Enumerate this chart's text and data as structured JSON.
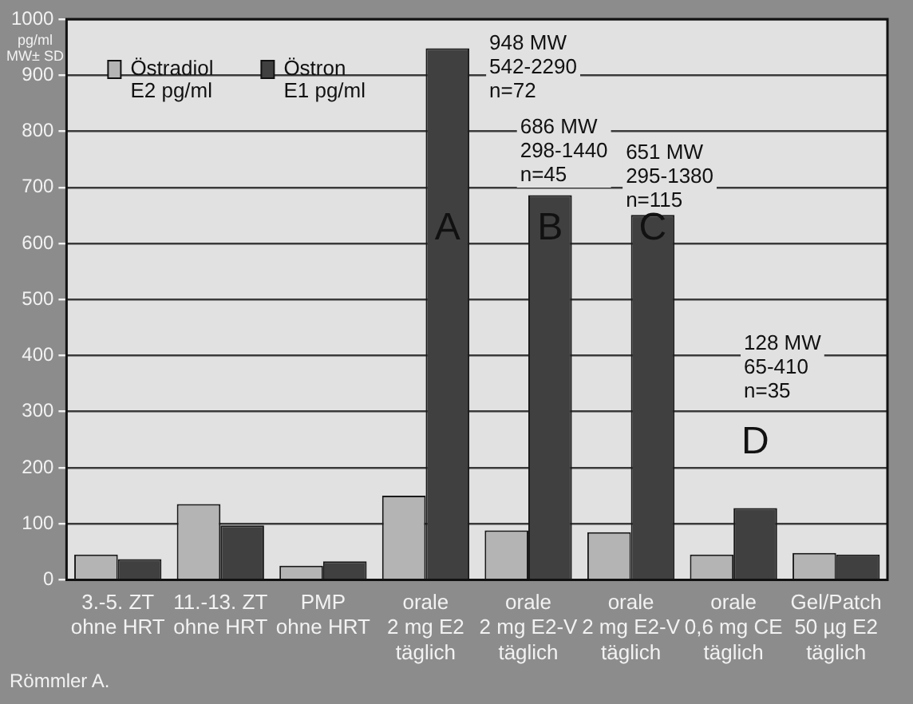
{
  "chart_data": {
    "type": "bar",
    "ylabel": "pg/ml\nMW± SD",
    "categories": [
      "3.-5. ZT\nohne HRT",
      "11.-13. ZT\nohne HRT",
      "PMP\nohne HRT",
      "orale\n2 mg E2\ntäglich",
      "orale\n2 mg E2-V\ntäglich",
      "orale\n2 mg E2-V\ntäglich",
      "orale\n0,6 mg CE\ntäglich",
      "Gel/Patch\n50 µg E2\ntäglich"
    ],
    "series": [
      {
        "name": "Östradiol\nE2 pg/ml",
        "color": "#b4b4b4",
        "values": [
          45,
          135,
          25,
          150,
          88,
          85,
          45,
          48
        ]
      },
      {
        "name": "Östron\nE1 pg/ml",
        "color": "#404040",
        "values": [
          37,
          97,
          33,
          948,
          686,
          651,
          128,
          45
        ]
      }
    ],
    "ylim": [
      0,
      1000
    ],
    "yticks": [
      0,
      100,
      200,
      300,
      400,
      500,
      600,
      700,
      800,
      900,
      1000
    ],
    "grid": "y",
    "legend": "top left",
    "annotations": [
      "948 MW\n542-2290\nn=72",
      "686 MW\n298-1440\nn=45",
      "651 MW\n295-1380\nn=115",
      "128 MW\n65-410\nn=35",
      "A",
      "B",
      "C",
      "D",
      "Römmler A."
    ]
  }
}
